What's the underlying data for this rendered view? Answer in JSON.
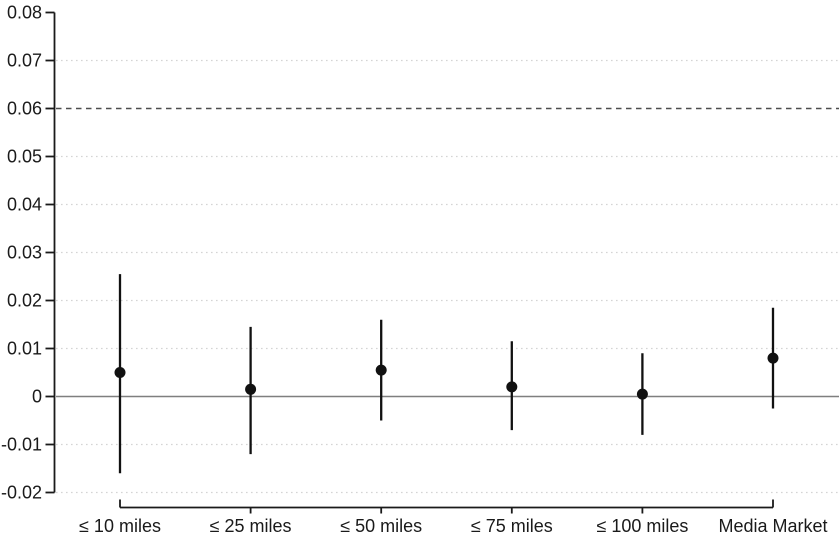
{
  "chart_data": {
    "type": "scatter",
    "subtype": "point_estimates_with_confidence_intervals",
    "title": "",
    "xlabel": "",
    "ylabel": "",
    "legend_position": "none",
    "categories": [
      "≤ 10 miles",
      "≤ 25 miles",
      "≤ 50 miles",
      "≤ 75 miles",
      "≤ 100 miles",
      "Media Market"
    ],
    "points": [
      {
        "label": "≤ 10 miles",
        "estimate": 0.005,
        "ci_lower": -0.016,
        "ci_upper": 0.0255
      },
      {
        "label": "≤ 25 miles",
        "estimate": 0.0015,
        "ci_lower": -0.012,
        "ci_upper": 0.0145
      },
      {
        "label": "≤ 50 miles",
        "estimate": 0.0055,
        "ci_lower": -0.005,
        "ci_upper": 0.016
      },
      {
        "label": "≤ 75 miles",
        "estimate": 0.002,
        "ci_lower": -0.007,
        "ci_upper": 0.0115
      },
      {
        "label": "≤ 100 miles",
        "estimate": 0.0005,
        "ci_lower": -0.008,
        "ci_upper": 0.009
      },
      {
        "label": "Media Market",
        "estimate": 0.008,
        "ci_lower": -0.0025,
        "ci_upper": 0.0185
      }
    ],
    "y_axis": {
      "min": -0.02,
      "max": 0.08,
      "tick_step": 0.01,
      "tick_values": [
        0.08,
        0.07,
        0.06,
        0.05,
        0.04,
        0.03,
        0.02,
        0.01,
        0,
        -0.01,
        -0.02
      ],
      "tick_labels": [
        "0.08",
        "0.07",
        "0.06",
        "0.05",
        "0.04",
        "0.03",
        "0.02",
        "0.01",
        "0",
        "-0.01",
        "-0.02"
      ]
    },
    "gridlines": {
      "style": "dotted",
      "color": "#d4d4d4",
      "at_values": [
        0.07,
        0.05,
        0.04,
        0.03,
        0.02,
        0.01,
        -0.01,
        -0.02
      ]
    },
    "reference_lines": [
      {
        "value": 0.06,
        "style": "dashed",
        "color": "#4d4d4d"
      },
      {
        "value": 0,
        "style": "solid",
        "color": "#7f7f7f"
      }
    ],
    "colors": {
      "point": "#111111",
      "error_bar": "#111111",
      "axis": "#1a1a1a",
      "text": "#1a1a1a",
      "background": "#ffffff"
    }
  }
}
